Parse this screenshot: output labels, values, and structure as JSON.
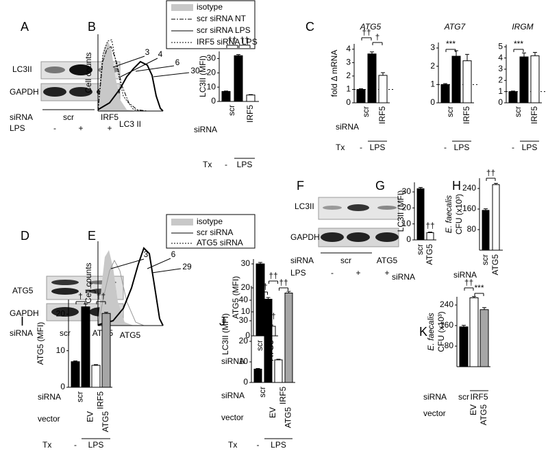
{
  "panel_labels": [
    "A",
    "B",
    "C",
    "D",
    "E",
    "F",
    "G",
    "H",
    "I",
    "J",
    "K"
  ],
  "blots": [
    {
      "rows": [
        "LC3II",
        "GAPDH"
      ],
      "lanes": [
        {
          "name": "siRNA",
          "labels": [
            "scr",
            "IRF5"
          ]
        },
        {
          "name": "LPS",
          "labels": [
            "-",
            "+",
            "+"
          ]
        }
      ]
    },
    {
      "rows": [
        "ATG5",
        "GAPDH"
      ],
      "lanes": [
        {
          "name": "siRNA",
          "labels": [
            "scr",
            "ATG5"
          ]
        }
      ]
    },
    {
      "rows": [
        "LC3II",
        "GAPDH"
      ],
      "lanes": [
        {
          "name": "siRNA",
          "labels": [
            "scr",
            "ATG5"
          ]
        },
        {
          "name": "LPS",
          "labels": [
            "-",
            "+",
            "+"
          ]
        }
      ]
    }
  ],
  "histograms": [
    {
      "legend": [
        "isotype",
        "scr siRNA NT",
        "scr siRNA LPS",
        "IRF5 siRNA LPS"
      ],
      "ylabel": "Cell counts",
      "xlabel": "LC3 II",
      "mfi": [
        3,
        4,
        6,
        30
      ]
    },
    {
      "legend": [
        "isotype",
        "scr siRNA",
        "ATG5 siRNA"
      ],
      "ylabel": "Cell counts",
      "xlabel": "ATG5",
      "mfi": [
        3,
        6,
        29
      ]
    }
  ],
  "chart_data": [
    {
      "type": "bar",
      "ylabel": [
        "LC3II (MFI)"
      ],
      "values": [
        7,
        32,
        4.5
      ],
      "errors": [
        0.3,
        0.8,
        0.3
      ],
      "colors": [
        "#000000",
        "#000000",
        "#ffffff"
      ],
      "ylim": [
        0,
        35
      ],
      "yticks": [
        0,
        10,
        20,
        30
      ],
      "rows": [
        {
          "name": "siRNA",
          "labels": [
            "scr",
            "IRF5"
          ]
        },
        {
          "name": "Tx",
          "labels": [
            "-",
            "LPS"
          ]
        }
      ],
      "annotations": [
        "††",
        "††"
      ]
    },
    {
      "type": "bar",
      "title": "ATG5",
      "ylabel": [
        "fold Δ mRNA"
      ],
      "values": [
        1,
        3.65,
        2.05
      ],
      "errors": [
        0.05,
        0.15,
        0.2
      ],
      "colors": [
        "#000000",
        "#000000",
        "#ffffff"
      ],
      "ylim": [
        0,
        4.4
      ],
      "yticks": [
        0,
        1,
        2,
        3,
        4
      ],
      "reference_line": 1,
      "rows": [
        {
          "name": "siRNA",
          "labels": [
            "scr",
            "IRF5"
          ]
        },
        {
          "name": "Tx",
          "labels": [
            "-",
            "LPS"
          ]
        }
      ],
      "annotations": [
        "††",
        "†"
      ]
    },
    {
      "type": "bar",
      "title": "ATG7",
      "values": [
        1,
        2.55,
        2.3
      ],
      "errors": [
        0.05,
        0.3,
        0.35
      ],
      "colors": [
        "#000000",
        "#000000",
        "#ffffff"
      ],
      "ylim": [
        0,
        3.3
      ],
      "yticks": [
        0,
        1,
        2,
        3
      ],
      "reference_line": 1,
      "rows": [
        {
          "labels": [
            "scr",
            "IRF5"
          ]
        },
        {
          "labels": [
            "-",
            "LPS"
          ]
        }
      ],
      "annotations": [
        "***"
      ]
    },
    {
      "type": "bar",
      "title": "IRGM",
      "values": [
        1,
        4.1,
        4.2
      ],
      "errors": [
        0.05,
        0.35,
        0.3
      ],
      "colors": [
        "#000000",
        "#000000",
        "#ffffff"
      ],
      "ylim": [
        0,
        5.2
      ],
      "yticks": [
        0,
        1,
        2,
        3,
        4,
        5
      ],
      "reference_line": 1,
      "rows": [
        {
          "labels": [
            "scr",
            "IRF5"
          ]
        },
        {
          "labels": [
            "-",
            "LPS"
          ]
        }
      ],
      "annotations": [
        "***"
      ]
    },
    {
      "type": "bar",
      "ylabel": [
        "ATG5 (MFI)"
      ],
      "values": [
        30,
        4
      ],
      "errors": [
        0.6,
        0.5
      ],
      "colors": [
        "#000000",
        "#ffffff"
      ],
      "ylim": [
        0,
        32
      ],
      "yticks": [
        0,
        10,
        20,
        30
      ],
      "rows": [
        {
          "name": "siRNA",
          "labels": [
            "scr",
            "ATG5"
          ]
        }
      ],
      "annotations": [
        "††"
      ]
    },
    {
      "type": "bar",
      "ylabel": [
        "LC3II (MFI)"
      ],
      "values": [
        32,
        4.5
      ],
      "errors": [
        0.8,
        0.4
      ],
      "colors": [
        "#000000",
        "#ffffff"
      ],
      "ylim": [
        0,
        36
      ],
      "yticks": [
        0,
        10,
        20,
        30
      ],
      "rows": [
        {
          "name": "siRNA",
          "labels": [
            "scr",
            "ATG5"
          ]
        }
      ],
      "annotations": [
        "††"
      ]
    },
    {
      "type": "bar",
      "ylabel": [
        "E. faecalis",
        "CFU (x10³)"
      ],
      "values": [
        155,
        255
      ],
      "errors": [
        6,
        5
      ],
      "colors": [
        "#000000",
        "#ffffff"
      ],
      "ylim": [
        0,
        280
      ],
      "yticks": [
        80,
        160,
        240
      ],
      "rows": [
        {
          "name": "siRNA",
          "labels": [
            "scr",
            "ATG5"
          ]
        }
      ],
      "annotations": [
        "††"
      ]
    },
    {
      "type": "bar",
      "ylabel": [
        "ATG5 (MFI)"
      ],
      "values": [
        7,
        22,
        6,
        20.2
      ],
      "errors": [
        0.2,
        0.8,
        0.2,
        0.3
      ],
      "colors": [
        "#000000",
        "#000000",
        "#ffffff",
        "#a6a6a6"
      ],
      "ylim": [
        0,
        24
      ],
      "yticks": [
        0,
        10,
        20
      ],
      "rows": [
        {
          "name": "siRNA",
          "labels": [
            "scr",
            "IRF5"
          ]
        },
        {
          "name": "vector",
          "labels": [
            "EV",
            "ATG5"
          ]
        },
        {
          "name": "Tx",
          "labels": [
            "-",
            "LPS"
          ]
        }
      ],
      "annotations": [
        "†",
        "†",
        "††"
      ]
    },
    {
      "type": "bar",
      "ylabel": [
        "LC3II (MFI)"
      ],
      "values": [
        6.5,
        40.5,
        11,
        43.5
      ],
      "errors": [
        0.3,
        0.8,
        0.3,
        0.8
      ],
      "colors": [
        "#000000",
        "#000000",
        "#ffffff",
        "#a6a6a6"
      ],
      "ylim": [
        0,
        47
      ],
      "yticks": [
        0,
        10,
        20,
        30,
        40
      ],
      "rows": [
        {
          "name": "siRNA",
          "labels": [
            "scr",
            "IRF5"
          ]
        },
        {
          "name": "vector",
          "labels": [
            "EV",
            "ATG5"
          ]
        },
        {
          "name": "Tx",
          "labels": [
            "-",
            "LPS"
          ]
        }
      ],
      "annotations": [
        "††",
        "††",
        "††"
      ]
    },
    {
      "type": "bar",
      "ylabel": [
        "E. faecalis",
        "CFU (x10³)"
      ],
      "values": [
        155,
        268,
        222
      ],
      "errors": [
        6,
        5,
        8
      ],
      "colors": [
        "#000000",
        "#ffffff",
        "#a6a6a6"
      ],
      "ylim": [
        0,
        272
      ],
      "yticks": [
        80,
        160,
        240
      ],
      "rows": [
        {
          "name": "siRNA",
          "labels": [
            "scr",
            "IRF5"
          ]
        },
        {
          "name": "vector",
          "labels": [
            "EV",
            "ATG5"
          ]
        }
      ],
      "annotations": [
        "††",
        "***"
      ]
    }
  ]
}
